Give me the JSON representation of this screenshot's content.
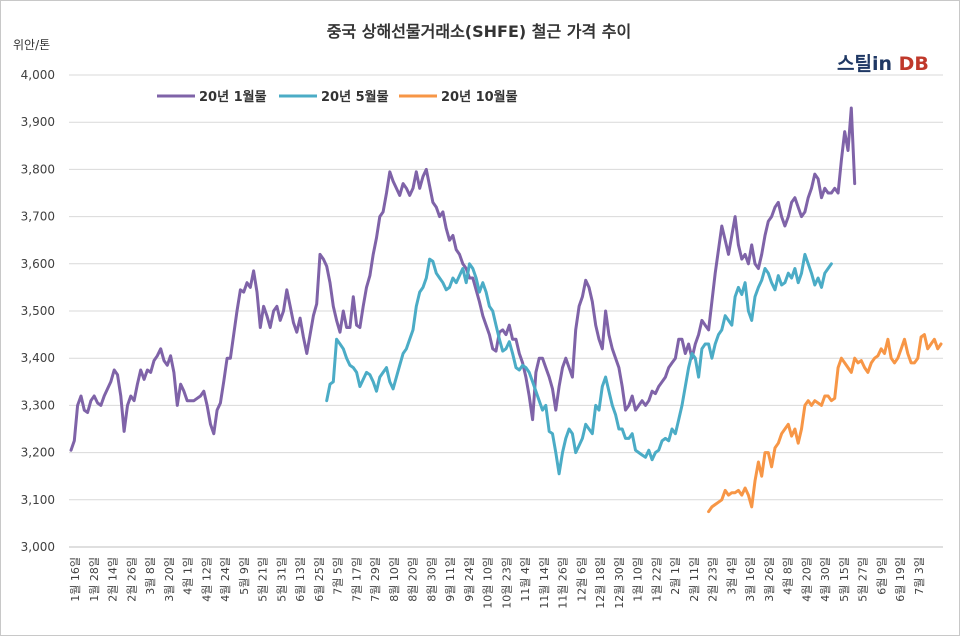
{
  "title": "중국 상해선물거래소(SHFE) 철근 가격 추이",
  "unit_label": "위안/톤",
  "brand": {
    "part1": "스틸",
    "part2": "in",
    "part3": " DB"
  },
  "colors": {
    "s1": "#7f63a8",
    "s2": "#4bacc6",
    "s3": "#f79646",
    "s4": "#1f3864",
    "brand_dark": "#1f3864",
    "brand_accent": "#c0392b"
  },
  "chart_data": {
    "type": "line",
    "title": "중국 상해선물거래소(SHFE) 철근 가격 추이",
    "ylabel": "위안/톤",
    "ylim": [
      3000,
      4000
    ],
    "yticks": [
      "3,000",
      "3,100",
      "3,200",
      "3,300",
      "3,400",
      "3,500",
      "3,600",
      "3,700",
      "3,800",
      "3,900",
      "4,000"
    ],
    "grid": true,
    "legend_position": "top-left",
    "x_labels": [
      "1월 16일",
      "1월 28일",
      "2월 14일",
      "2월 26일",
      "3월 8일",
      "3월 20일",
      "4월 1일",
      "4월 12일",
      "4월 24일",
      "5월 9일",
      "5월 21일",
      "5월 31일",
      "6월 13일",
      "6월 25일",
      "7월 5일",
      "7월 17일",
      "7월 29일",
      "8월 10일",
      "8월 20일",
      "8월 30일",
      "9월 11일",
      "9월 24일",
      "10월 10일",
      "10월 23일",
      "11월 4일",
      "11월 14일",
      "11월 26일",
      "12월 6일",
      "12월 18일",
      "12월 30일",
      "1월 10일",
      "1월 22일",
      "2월 1일",
      "2월 11일",
      "2월 23일",
      "3월 4일",
      "3월 16일",
      "3월 26일",
      "4월 8일",
      "4월 20일",
      "4월 30일",
      "5월 15일",
      "5월 27일",
      "6월 9일",
      "6월 19일",
      "7월 3일"
    ],
    "series": [
      {
        "name": "20년 1월물",
        "start": 0,
        "values": [
          3205,
          3225,
          3300,
          3320,
          3290,
          3285,
          3310,
          3320,
          3305,
          3300,
          3320,
          3335,
          3350,
          3375,
          3365,
          3320,
          3245,
          3300,
          3320,
          3310,
          3345,
          3375,
          3355,
          3375,
          3370,
          3395,
          3405,
          3420,
          3395,
          3385,
          3405,
          3370,
          3300,
          3345,
          3330,
          3310,
          3310,
          3310,
          3315,
          3320,
          3330,
          3300,
          3260,
          3240,
          3290,
          3305,
          3350,
          3400,
          3400,
          3450,
          3500,
          3545,
          3540,
          3560,
          3550,
          3585,
          3540,
          3465,
          3510,
          3490,
          3465,
          3500,
          3510,
          3480,
          3500,
          3545,
          3510,
          3475,
          3455,
          3485,
          3445,
          3410,
          3450,
          3490,
          3515,
          3620,
          3610,
          3595,
          3560,
          3510,
          3480,
          3455,
          3500,
          3465,
          3465,
          3530,
          3470,
          3465,
          3510,
          3550,
          3575,
          3620,
          3655,
          3700,
          3710,
          3750,
          3795,
          3775,
          3760,
          3745,
          3770,
          3760,
          3745,
          3760,
          3795,
          3760,
          3785,
          3800,
          3765,
          3730,
          3720,
          3700,
          3710,
          3675,
          3650,
          3660,
          3630,
          3620,
          3600,
          3590,
          3570,
          3570,
          3545,
          3520,
          3490,
          3470,
          3450,
          3420,
          3415,
          3455,
          3460,
          3450,
          3470,
          3440,
          3440,
          3410,
          3390,
          3360,
          3320,
          3270,
          3370,
          3400,
          3400,
          3380,
          3360,
          3335,
          3290,
          3340,
          3380,
          3400,
          3380,
          3360,
          3460,
          3510,
          3530,
          3565,
          3550,
          3520,
          3470,
          3440,
          3420,
          3500,
          3450,
          3420,
          3400,
          3380,
          3340,
          3290,
          3300,
          3320,
          3290,
          3300,
          3310,
          3300,
          3310,
          3330,
          3325,
          3340,
          3350,
          3360,
          3380,
          3390,
          3400,
          3440,
          3440,
          3410,
          3430,
          3400,
          3430,
          3450,
          3480,
          3470,
          3460,
          3520,
          3580,
          3630,
          3680,
          3650,
          3620,
          3660,
          3700,
          3640,
          3610,
          3620,
          3600,
          3640,
          3600,
          3590,
          3620,
          3660,
          3690,
          3700,
          3720,
          3730,
          3700,
          3680,
          3700,
          3730,
          3740,
          3720,
          3700,
          3710,
          3740,
          3760,
          3790,
          3780,
          3740,
          3760,
          3750,
          3750,
          3760,
          3750,
          3820,
          3880,
          3840,
          3930,
          3770
        ]
      },
      {
        "name": "20년 5월물",
        "start": 77,
        "values": [
          3310,
          3345,
          3350,
          3440,
          3430,
          3420,
          3400,
          3385,
          3380,
          3370,
          3340,
          3355,
          3370,
          3365,
          3350,
          3330,
          3360,
          3370,
          3380,
          3350,
          3335,
          3360,
          3385,
          3410,
          3420,
          3440,
          3460,
          3510,
          3540,
          3550,
          3570,
          3610,
          3605,
          3580,
          3570,
          3560,
          3545,
          3550,
          3570,
          3560,
          3575,
          3590,
          3560,
          3600,
          3590,
          3570,
          3540,
          3560,
          3540,
          3510,
          3500,
          3470,
          3440,
          3415,
          3420,
          3435,
          3410,
          3380,
          3375,
          3385,
          3380,
          3370,
          3350,
          3330,
          3310,
          3290,
          3300,
          3245,
          3240,
          3200,
          3155,
          3200,
          3230,
          3250,
          3240,
          3200,
          3215,
          3230,
          3260,
          3250,
          3240,
          3300,
          3290,
          3340,
          3360,
          3330,
          3300,
          3280,
          3250,
          3250,
          3230,
          3230,
          3240,
          3205,
          3200,
          3195,
          3190,
          3205,
          3185,
          3200,
          3205,
          3225,
          3230,
          3225,
          3250,
          3240,
          3270,
          3300,
          3340,
          3380,
          3410,
          3400,
          3360,
          3420,
          3430,
          3430,
          3400,
          3430,
          3450,
          3460,
          3490,
          3480,
          3470,
          3530,
          3550,
          3535,
          3560,
          3500,
          3480,
          3530,
          3550,
          3565,
          3590,
          3580,
          3560,
          3545,
          3575,
          3555,
          3560,
          3580,
          3570,
          3590,
          3560,
          3580,
          3620,
          3600,
          3580,
          3555,
          3570,
          3550,
          3580,
          3590,
          3600
        ]
      },
      {
        "name": "20년 10월물",
        "start": 192,
        "values": [
          3075,
          3085,
          3090,
          3095,
          3100,
          3120,
          3110,
          3115,
          3115,
          3120,
          3110,
          3125,
          3110,
          3085,
          3140,
          3180,
          3150,
          3200,
          3200,
          3170,
          3210,
          3220,
          3240,
          3250,
          3260,
          3235,
          3250,
          3220,
          3250,
          3300,
          3310,
          3300,
          3310,
          3305,
          3300,
          3320,
          3320,
          3310,
          3315,
          3380,
          3400,
          3390,
          3380,
          3370,
          3400,
          3390,
          3395,
          3380,
          3370,
          3390,
          3400,
          3405,
          3420,
          3410,
          3440,
          3400,
          3390,
          3400,
          3420,
          3440,
          3410,
          3390,
          3390,
          3400,
          3445,
          3450,
          3420,
          3430,
          3440,
          3420,
          3430
        ]
      }
    ]
  }
}
